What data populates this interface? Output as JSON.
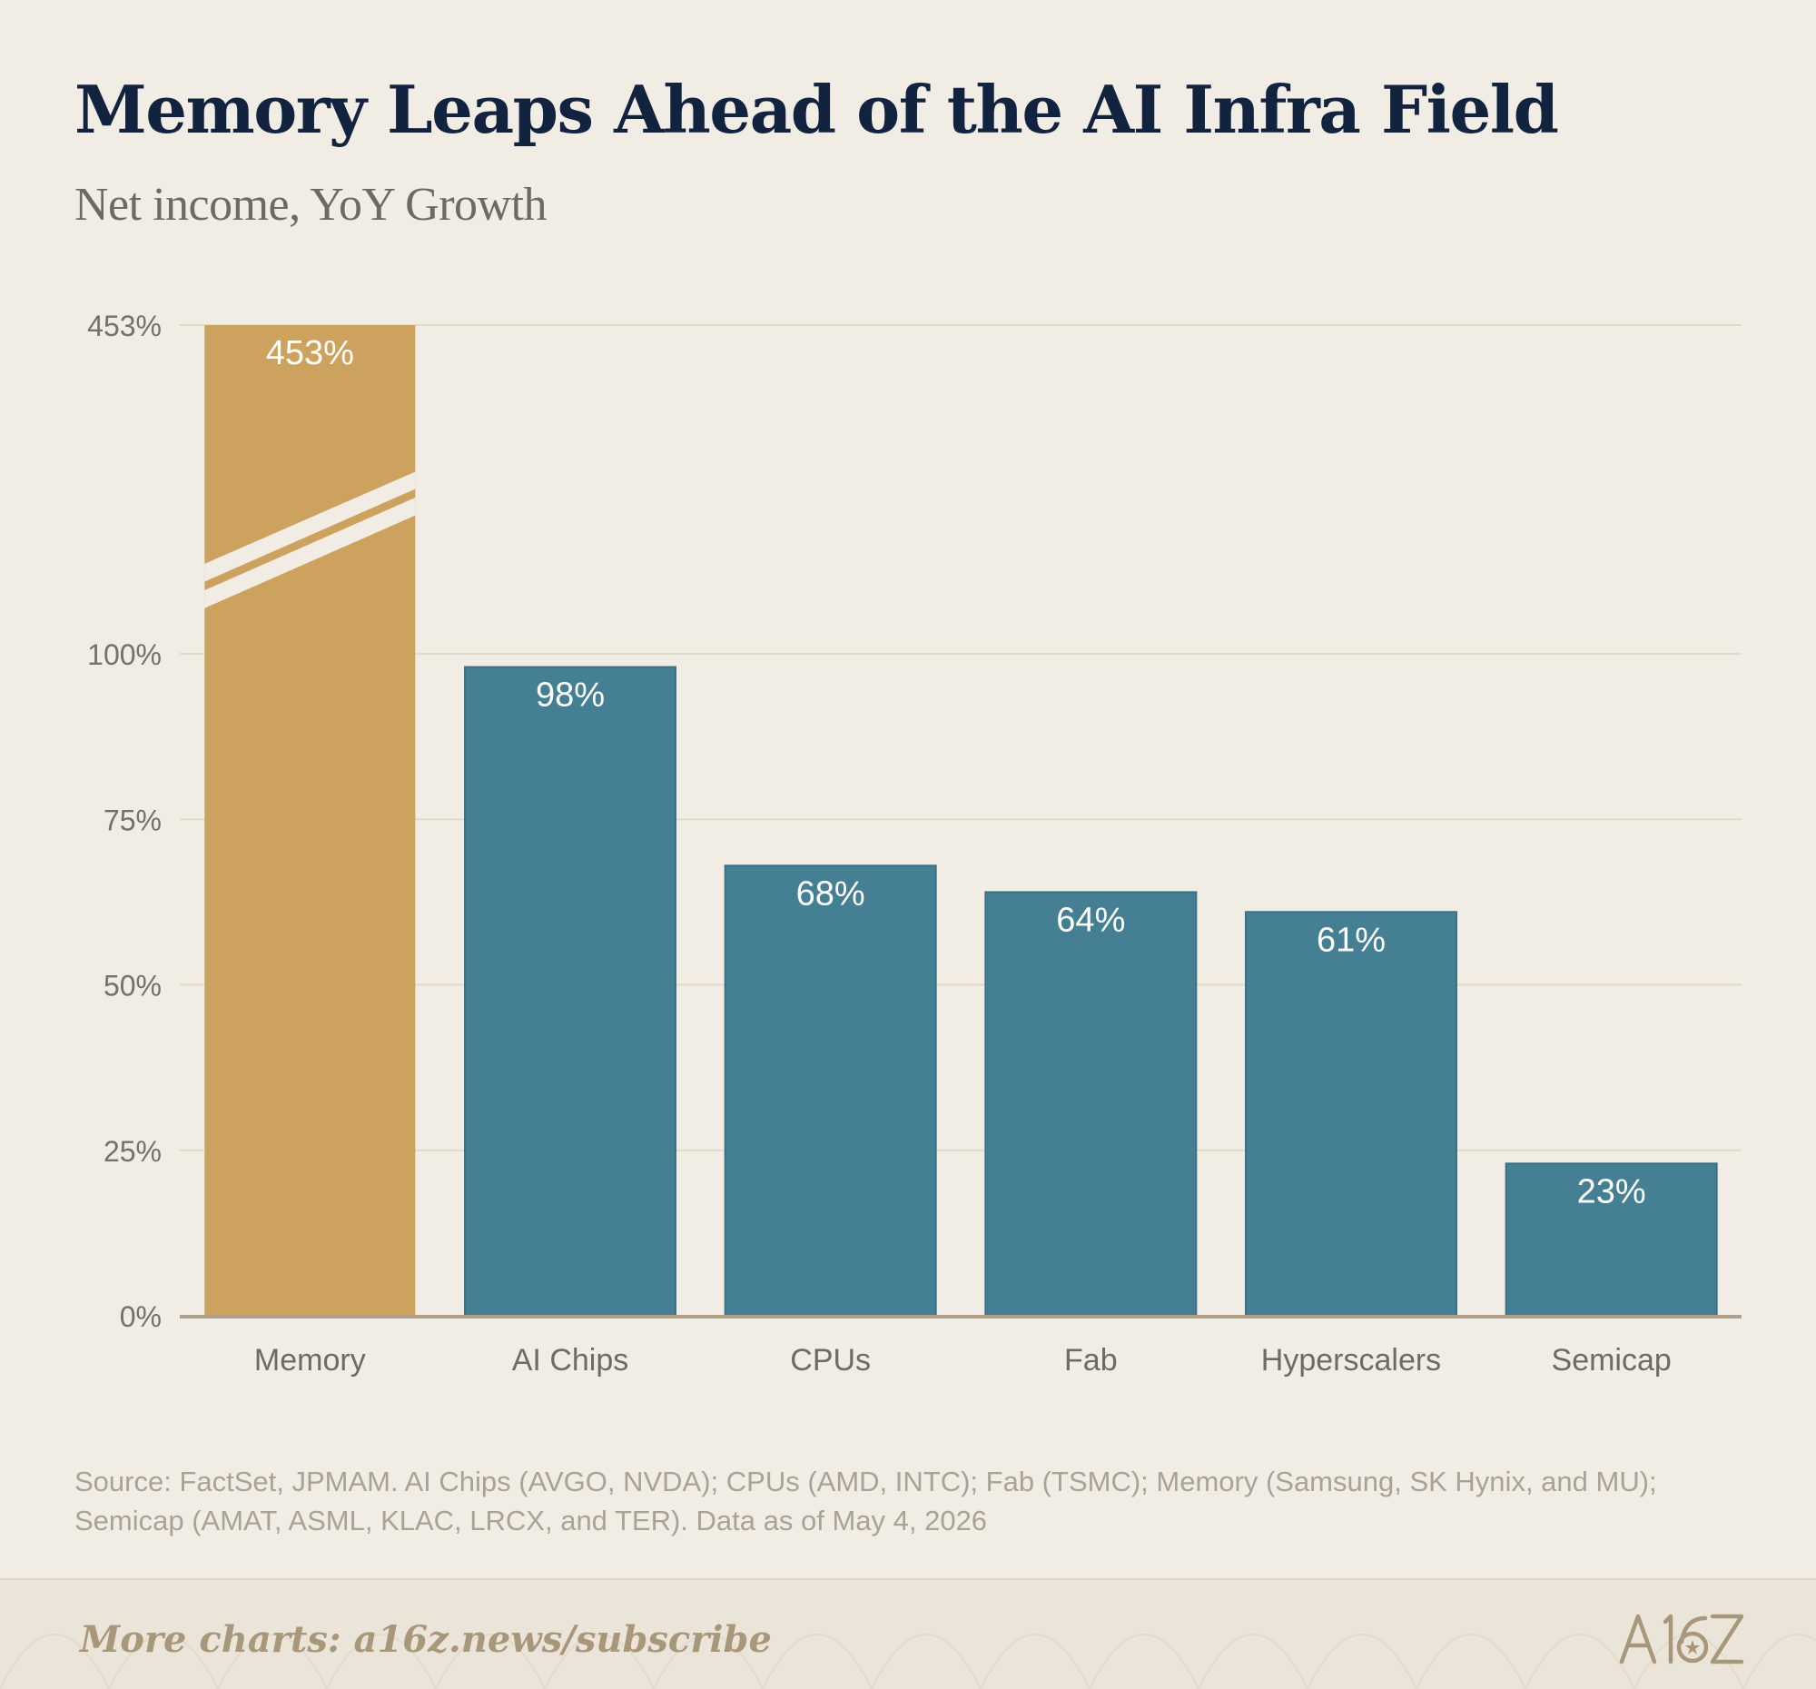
{
  "title": "Memory Leaps Ahead of the AI Infra Field",
  "subtitle": "Net income, YoY Growth",
  "chart_data": {
    "type": "bar",
    "categories": [
      "Memory",
      "AI Chips",
      "CPUs",
      "Fab",
      "Hyperscalers",
      "Semicap"
    ],
    "values": [
      453,
      98,
      68,
      64,
      61,
      23
    ],
    "data_labels": [
      "453%",
      "98%",
      "68%",
      "64%",
      "61%",
      "23%"
    ],
    "ylim": [
      0,
      100
    ],
    "y_ticks": [
      0,
      25,
      50,
      75,
      100,
      453
    ],
    "y_tick_labels": [
      "0%",
      "25%",
      "50%",
      "75%",
      "100%",
      "453%"
    ],
    "axis_break": true,
    "broken_category": "Memory",
    "grid": true,
    "colors": {
      "highlight": "#cda25e",
      "default": "#457f93",
      "grid": "#e0dac8",
      "axis": "#aea08b"
    }
  },
  "source": "Source: FactSet, JPMAM. AI Chips (AVGO, NVDA); CPUs (AMD, INTC); Fab (TSMC); Memory (Samsung, SK Hynix, and MU); Semicap (AMAT, ASML, KLAC, LRCX, and TER). Data as of May 4, 2026",
  "footer": {
    "cta": "More charts: a16z.news/subscribe",
    "logo": "A16Z"
  }
}
